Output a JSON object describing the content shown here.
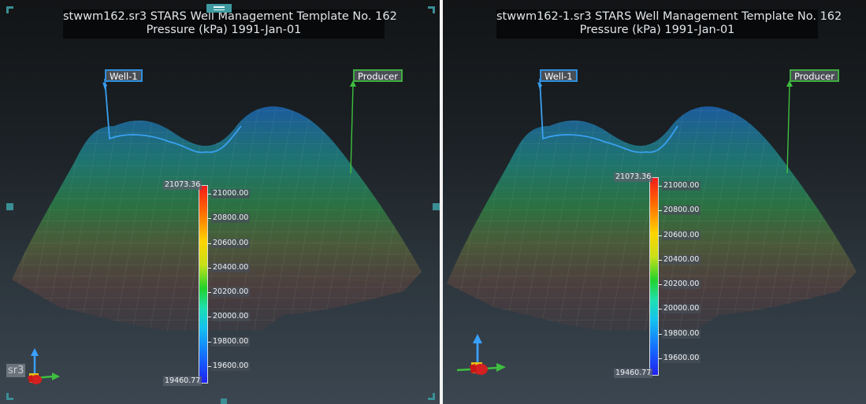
{
  "views": [
    {
      "id": "left",
      "title_line1": "stwwm162.sr3 STARS Well Management Template No. 162",
      "title_line2": "Pressure (kPa)  1991-Jan-01",
      "wells": [
        {
          "label": "Well-1",
          "color": "#2f8fe0"
        },
        {
          "label": "Producer",
          "color": "#3fae3f"
        }
      ],
      "colorbar": {
        "max_label": "21073.36",
        "min_label": "19460.77",
        "ticks": [
          "21000.00",
          "20800.00",
          "20600.00",
          "20400.00",
          "20200.00",
          "20000.00",
          "19800.00",
          "19600.00"
        ]
      },
      "corner_tag": "sr3"
    },
    {
      "id": "right",
      "title_line1": "stwwm162-1.sr3 STARS Well Management Template No. 162",
      "title_line2": "Pressure (kPa)  1991-Jan-01",
      "wells": [
        {
          "label": "Well-1",
          "color": "#2f8fe0"
        },
        {
          "label": "Producer",
          "color": "#3fae3f"
        }
      ],
      "colorbar": {
        "max_label": "21073.36",
        "min_label": "19460.77",
        "ticks": [
          "21000.00",
          "20800.00",
          "20600.00",
          "20400.00",
          "20200.00",
          "20000.00",
          "19800.00",
          "19600.00"
        ]
      }
    }
  ],
  "colors": {
    "selection_handle": "#3a8f95",
    "well_blue": "#2f8fe0",
    "well_green": "#3fae3f",
    "background_top": "#121416",
    "background_bottom": "#3b4650"
  },
  "icons": {
    "left_axis": "axis-triad-icon",
    "right_axis": "axis-triad-icon",
    "drag_handle": "drag-handle-icon"
  }
}
